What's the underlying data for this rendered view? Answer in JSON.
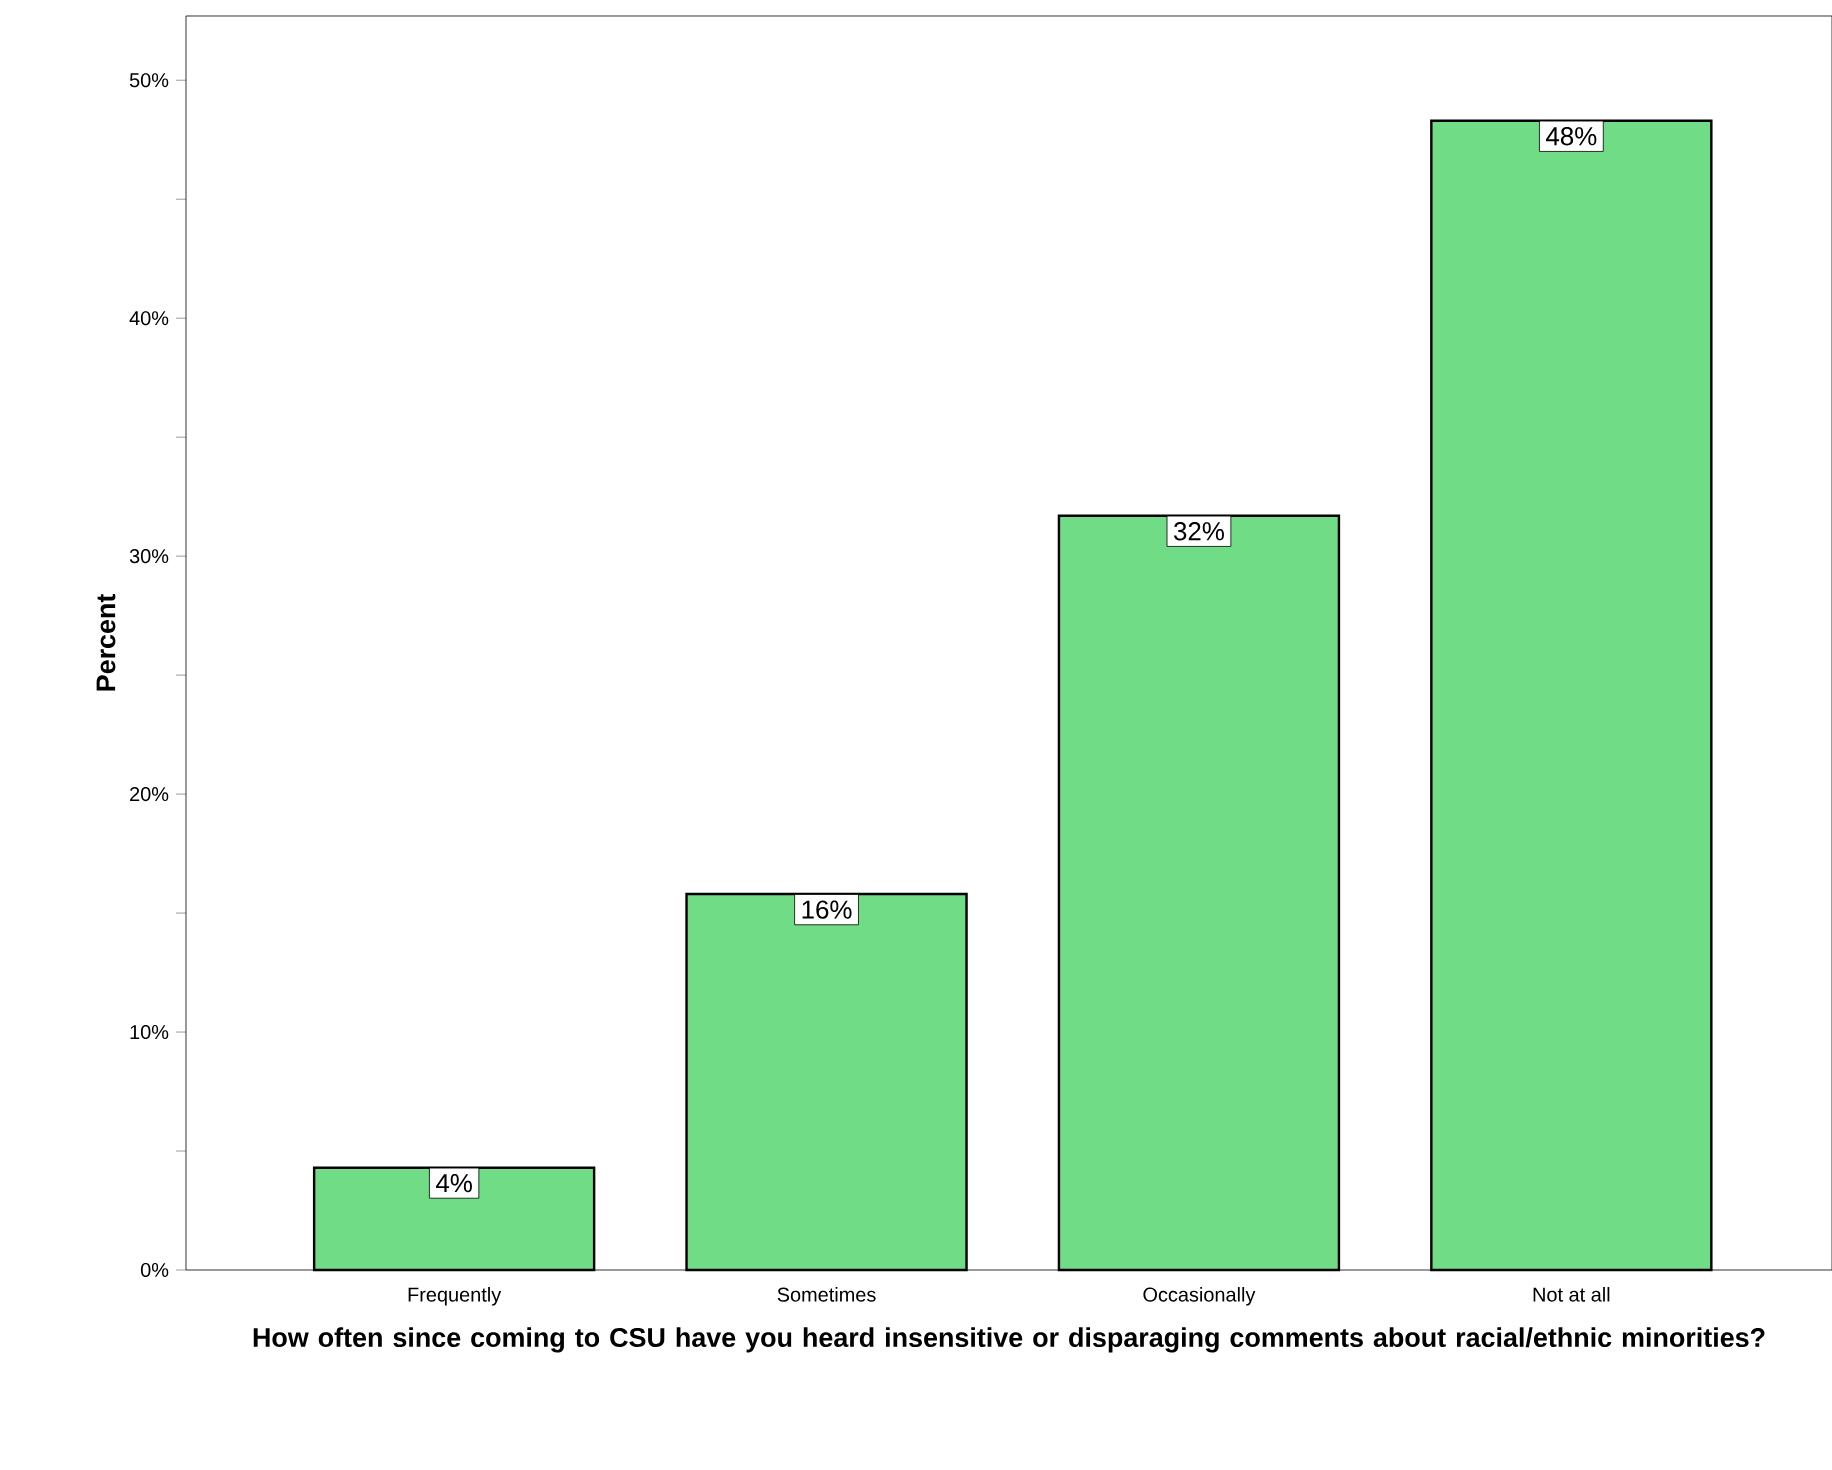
{
  "chart_data": {
    "type": "bar",
    "xlabel": "How often since coming to CSU have you heard insensitive or disparaging comments about racial/ethnic minorities?",
    "ylabel": "Percent",
    "categories": [
      "Frequently",
      "Sometimes",
      "Occasionally",
      "Not at all"
    ],
    "values": [
      4.3,
      15.8,
      31.7,
      48.3
    ],
    "value_labels": [
      "4%",
      "16%",
      "32%",
      "48%"
    ],
    "color": "#70dc86",
    "ylim": [
      0,
      52.7
    ],
    "yticks": [
      {
        "value": 0,
        "label": "0%"
      },
      {
        "value": 5,
        "label": null
      },
      {
        "value": 10,
        "label": "10%"
      },
      {
        "value": 15,
        "label": null
      },
      {
        "value": 20,
        "label": "20%"
      },
      {
        "value": 25,
        "label": null
      },
      {
        "value": 30,
        "label": "30%"
      },
      {
        "value": 35,
        "label": null
      },
      {
        "value": 40,
        "label": "40%"
      },
      {
        "value": 45,
        "label": null
      },
      {
        "value": 50,
        "label": "50%"
      }
    ],
    "grid": false
  }
}
